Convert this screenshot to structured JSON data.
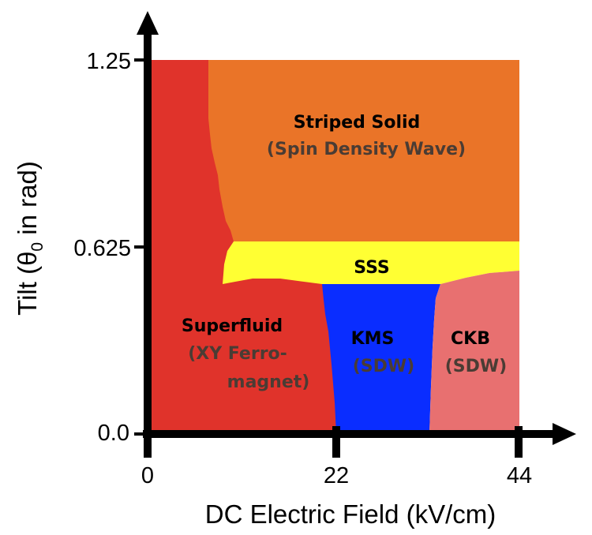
{
  "chart_data": {
    "type": "phase-diagram",
    "xlabel": "DC Electric Field (kV/cm)",
    "ylabel_main": "Tilt (θ",
    "ylabel_sub": "0",
    "ylabel_tail": " in rad)",
    "x_ticks": [
      "0",
      "22",
      "44"
    ],
    "y_ticks": [
      "0.0",
      "0.625",
      "1.25"
    ],
    "xlim": [
      0,
      44
    ],
    "ylim": [
      0,
      1.25
    ],
    "regions": [
      {
        "key": "superfluid",
        "name": "Superfluid",
        "sub": [
          "(XY Ferro-",
          "magnet)"
        ],
        "color": "#e0332b"
      },
      {
        "key": "striped",
        "name": "Striped Solid",
        "sub": [
          "(Spin Density Wave)"
        ],
        "color": "#ea7428"
      },
      {
        "key": "sss",
        "name": "SSS",
        "sub": [],
        "color": "#ffff33"
      },
      {
        "key": "kms",
        "name": "KMS",
        "sub": [
          "(SDW)"
        ],
        "color": "#0a2dff"
      },
      {
        "key": "ckb",
        "name": "CKB",
        "sub": [
          "(SDW)"
        ],
        "color": "#e87070"
      }
    ]
  }
}
